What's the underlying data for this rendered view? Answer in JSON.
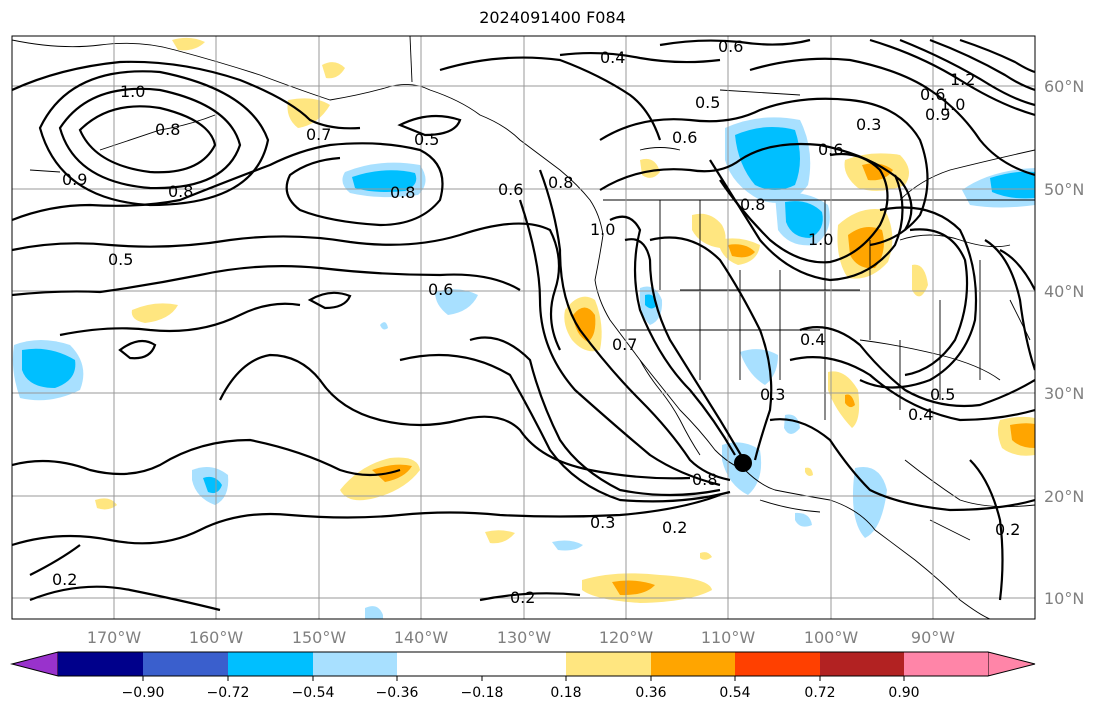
{
  "title": "2024091400 F084",
  "map": {
    "lat_labels": [
      "60°N",
      "50°N",
      "40°N",
      "30°N",
      "20°N",
      "10°N"
    ],
    "lon_labels": [
      "170°W",
      "160°W",
      "150°W",
      "140°W",
      "130°W",
      "120°W",
      "110°W",
      "100°W",
      "90°W"
    ],
    "contour_labels": [
      "1.0",
      "0.9",
      "0.8",
      "0.5",
      "0.7",
      "0.5",
      "0.8",
      "0.6",
      "0.4",
      "0.6",
      "0.5",
      "0.6",
      "0.3",
      "0.6",
      "0.8",
      "1.0",
      "1.2",
      "1.0",
      "0.6",
      "0.8",
      "1.0",
      "0.4",
      "0.6",
      "0.7",
      "0.3",
      "0.8",
      "0.3",
      "0.2",
      "0.2",
      "0.2",
      "0.4",
      "0.5",
      "0.2",
      "0.8",
      "0.9"
    ],
    "marker": "storm-center"
  },
  "colorbar": {
    "ticks": [
      "−0.90",
      "−0.72",
      "−0.54",
      "−0.36",
      "−0.18",
      "0.18",
      "0.36",
      "0.54",
      "0.72",
      "0.90"
    ],
    "colors": [
      "#9932cc",
      "#00008b",
      "#3a5fcd",
      "#00bfff",
      "#a8e0ff",
      "#ffffff",
      "#ffe680",
      "#ffa500",
      "#ff4000",
      "#b22222",
      "#ff85a8"
    ]
  }
}
